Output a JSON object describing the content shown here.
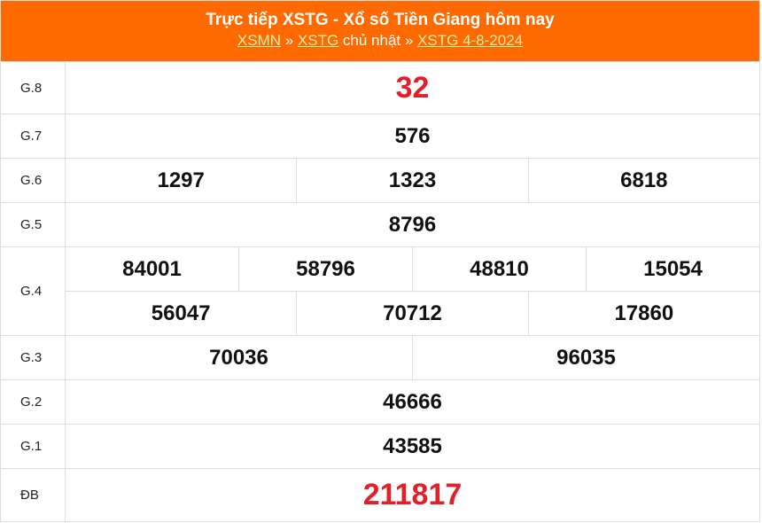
{
  "header": {
    "title": "Trực tiếp XSTG - Xổ số Tiền Giang hôm nay",
    "breadcrumb": {
      "link1": "XSMN",
      "sep1": " » ",
      "link2": "XSTG",
      "text2": " chủ nhật",
      "sep2": " » ",
      "link3": "XSTG 4-8-2024"
    }
  },
  "colors": {
    "header_bg": "#ff6a00",
    "highlight": "#e3202a"
  },
  "prizes": [
    {
      "label": "G.8",
      "rows": [
        [
          "32"
        ]
      ],
      "highlight": true
    },
    {
      "label": "G.7",
      "rows": [
        [
          "576"
        ]
      ]
    },
    {
      "label": "G.6",
      "rows": [
        [
          "1297",
          "1323",
          "6818"
        ]
      ]
    },
    {
      "label": "G.5",
      "rows": [
        [
          "8796"
        ]
      ]
    },
    {
      "label": "G.4",
      "rows": [
        [
          "84001",
          "58796",
          "48810",
          "15054"
        ],
        [
          "56047",
          "70712",
          "17860"
        ]
      ]
    },
    {
      "label": "G.3",
      "rows": [
        [
          "70036",
          "96035"
        ]
      ]
    },
    {
      "label": "G.2",
      "rows": [
        [
          "46666"
        ]
      ]
    },
    {
      "label": "G.1",
      "rows": [
        [
          "43585"
        ]
      ]
    },
    {
      "label": "ĐB",
      "rows": [
        [
          "211817"
        ]
      ],
      "highlight": true
    }
  ]
}
